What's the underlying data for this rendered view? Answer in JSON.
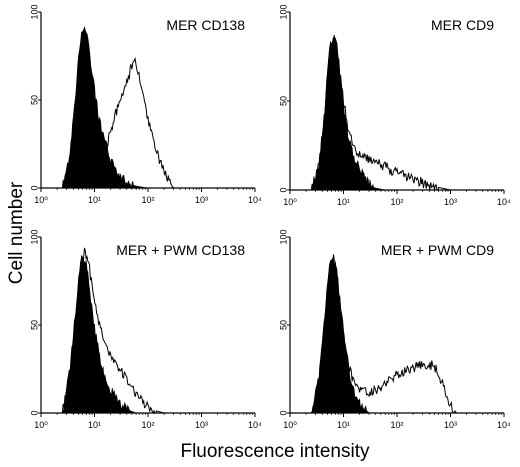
{
  "figure": {
    "ylabel": "Cell number",
    "xlabel": "Fluorescence intensity"
  },
  "chart_data": [
    {
      "type": "area",
      "title": "MER  CD138",
      "x_scale": "log",
      "xlim": [
        1,
        10000
      ],
      "ylim": [
        0,
        100
      ],
      "x_ticks": [
        1,
        10,
        100,
        1000,
        10000
      ],
      "x_tick_labels": [
        "10⁰",
        "10¹",
        "10²",
        "10³",
        "10⁴"
      ],
      "y_ticks": [
        0,
        50,
        100
      ],
      "y_tick_labels": [
        "0",
        "50",
        "100"
      ],
      "series": [
        {
          "style": "filled",
          "x": [
            2.5,
            3.5,
            4.5,
            5.5,
            6.5,
            7.5,
            8.5,
            10,
            12,
            15,
            20,
            25,
            30,
            40,
            60,
            100
          ],
          "y": [
            0,
            20,
            55,
            85,
            92,
            86,
            72,
            55,
            40,
            28,
            16,
            10,
            6,
            3,
            1,
            0
          ]
        },
        {
          "style": "outline",
          "x": [
            4,
            8,
            12,
            16,
            20,
            25,
            30,
            40,
            50,
            55,
            65,
            80,
            100,
            130,
            170,
            230,
            300
          ],
          "y": [
            0,
            3,
            12,
            22,
            32,
            42,
            50,
            60,
            69,
            73,
            66,
            52,
            38,
            25,
            14,
            5,
            0
          ]
        }
      ]
    },
    {
      "type": "area",
      "title": "MER  CD9",
      "x_scale": "log",
      "xlim": [
        1,
        10000
      ],
      "ylim": [
        0,
        100
      ],
      "x_ticks": [
        1,
        10,
        100,
        1000,
        10000
      ],
      "x_tick_labels": [
        "10⁰",
        "10¹",
        "10²",
        "10³",
        "10⁴"
      ],
      "y_ticks": [
        0,
        50,
        100
      ],
      "y_tick_labels": [
        "0",
        "50",
        "100"
      ],
      "series": [
        {
          "style": "filled",
          "x": [
            2.5,
            3.5,
            4.5,
            5.5,
            6.5,
            7.5,
            8.5,
            10,
            12,
            15,
            20,
            25,
            30,
            40,
            60
          ],
          "y": [
            0,
            15,
            45,
            80,
            86,
            80,
            66,
            48,
            32,
            20,
            11,
            6,
            3,
            1,
            0
          ]
        },
        {
          "style": "outline",
          "x": [
            2.5,
            3.5,
            4.5,
            5.5,
            6.5,
            7.5,
            8.5,
            10,
            12,
            15,
            20,
            30,
            40,
            60,
            80,
            120,
            200,
            300,
            500,
            700,
            1000
          ],
          "y": [
            0,
            15,
            45,
            80,
            86,
            80,
            66,
            50,
            36,
            26,
            20,
            17,
            15,
            13,
            11,
            9,
            6,
            4,
            2,
            1,
            0
          ]
        }
      ]
    },
    {
      "type": "area",
      "title": "MER + PWM  CD138",
      "x_scale": "log",
      "xlim": [
        1,
        10000
      ],
      "ylim": [
        0,
        100
      ],
      "x_ticks": [
        1,
        10,
        100,
        1000,
        10000
      ],
      "x_tick_labels": [
        "10⁰",
        "10¹",
        "10²",
        "10³",
        "10⁴"
      ],
      "y_ticks": [
        0,
        50,
        100
      ],
      "y_tick_labels": [
        "0",
        "50",
        "100"
      ],
      "series": [
        {
          "style": "filled",
          "x": [
            2.5,
            3.5,
            4.5,
            5.5,
            6.5,
            7.5,
            8.5,
            10,
            12,
            15,
            20,
            25,
            30,
            40,
            60
          ],
          "y": [
            0,
            25,
            60,
            85,
            88,
            80,
            65,
            48,
            34,
            22,
            13,
            8,
            5,
            2,
            0
          ]
        },
        {
          "style": "outline",
          "x": [
            2.5,
            3.5,
            4.5,
            5.5,
            6.5,
            7.5,
            9,
            11,
            14,
            18,
            22,
            28,
            35,
            45,
            60,
            80,
            100,
            150,
            200
          ],
          "y": [
            0,
            20,
            55,
            85,
            92,
            88,
            72,
            56,
            44,
            36,
            30,
            26,
            22,
            16,
            10,
            6,
            4,
            1,
            0
          ]
        }
      ]
    },
    {
      "type": "area",
      "title": "MER + PWM  CD9",
      "x_scale": "log",
      "xlim": [
        1,
        10000
      ],
      "ylim": [
        0,
        100
      ],
      "x_ticks": [
        1,
        10,
        100,
        1000,
        10000
      ],
      "x_tick_labels": [
        "10⁰",
        "10¹",
        "10²",
        "10³",
        "10⁴"
      ],
      "y_ticks": [
        0,
        50,
        100
      ],
      "y_tick_labels": [
        "0",
        "50",
        "100"
      ],
      "series": [
        {
          "style": "filled",
          "x": [
            2.5,
            3.5,
            4.5,
            5.5,
            6.5,
            7.5,
            8.5,
            10,
            12,
            15,
            20,
            30
          ],
          "y": [
            0,
            20,
            55,
            85,
            88,
            80,
            64,
            45,
            28,
            14,
            5,
            0
          ]
        },
        {
          "style": "outline",
          "x": [
            2.5,
            3.5,
            4.5,
            5.5,
            6.5,
            7.5,
            8.5,
            10,
            12,
            15,
            20,
            30,
            45,
            70,
            100,
            150,
            220,
            300,
            400,
            500,
            600,
            800,
            1000,
            1300
          ],
          "y": [
            0,
            20,
            55,
            85,
            88,
            80,
            64,
            46,
            30,
            18,
            12,
            12,
            14,
            18,
            22,
            25,
            26,
            28,
            28,
            26,
            22,
            12,
            4,
            0
          ]
        }
      ]
    }
  ]
}
